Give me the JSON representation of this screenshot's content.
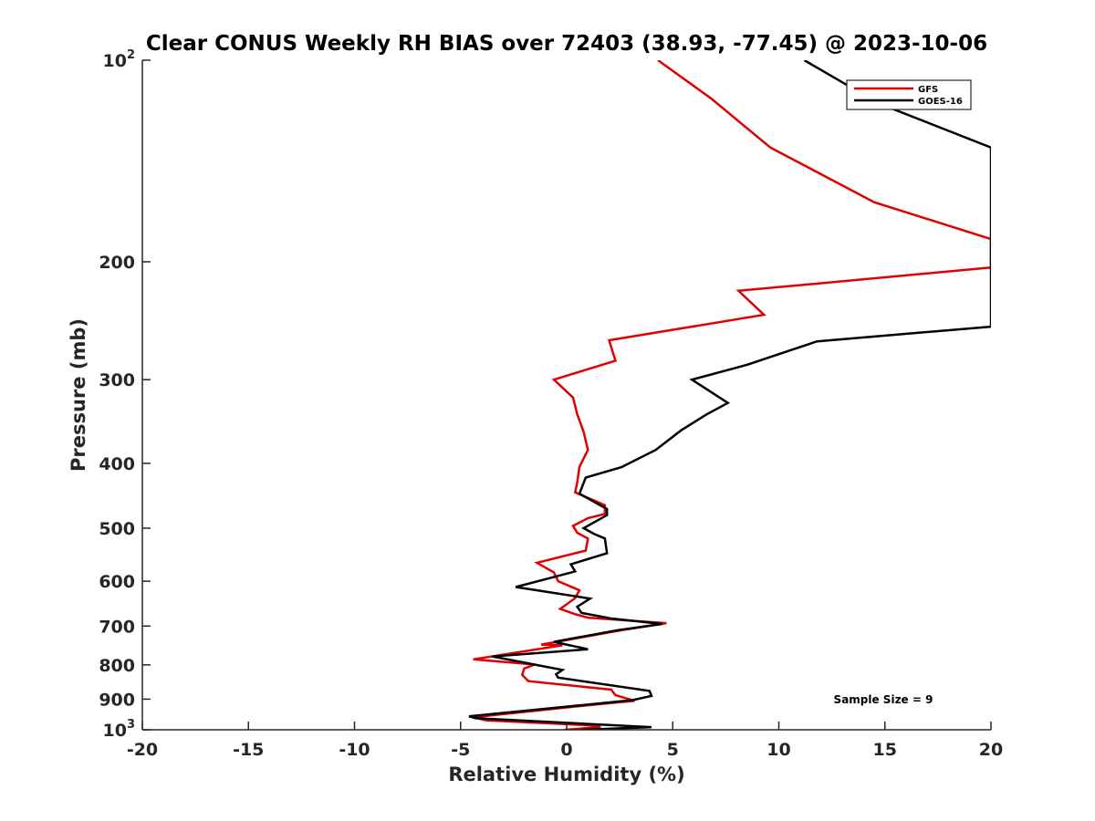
{
  "chart_data": {
    "type": "line",
    "title": "Clear CONUS Weekly RH BIAS over 72403 (38.93, -77.45) @ 2023-10-06",
    "xlabel": "Relative Humidity (%)",
    "ylabel": "Pressure (mb)",
    "xlim": [
      -20,
      20
    ],
    "ylim": [
      100,
      1000
    ],
    "y_scale": "log",
    "y_reversed": true,
    "x_ticks": [
      -20,
      -15,
      -10,
      -5,
      0,
      5,
      10,
      15,
      20
    ],
    "x_tick_labels": [
      "-20",
      "-15",
      "-10",
      "-5",
      "0",
      "5",
      "10",
      "15",
      "20"
    ],
    "y_ticks": [
      100,
      200,
      300,
      400,
      500,
      600,
      700,
      800,
      900,
      1000
    ],
    "y_tick_labels": [
      {
        "base": "10",
        "sup": "2"
      },
      {
        "base": "200",
        "sup": ""
      },
      {
        "base": "300",
        "sup": ""
      },
      {
        "base": "400",
        "sup": ""
      },
      {
        "base": "500",
        "sup": ""
      },
      {
        "base": "600",
        "sup": ""
      },
      {
        "base": "700",
        "sup": ""
      },
      {
        "base": "800",
        "sup": ""
      },
      {
        "base": "900",
        "sup": ""
      },
      {
        "base": "10",
        "sup": "3"
      }
    ],
    "grid": false,
    "legend_position": "top-right",
    "annotation": "Sample Size = 9",
    "series": [
      {
        "name": "GFS",
        "color": "#e00000",
        "points": [
          [
            4.3,
            100
          ],
          [
            6.8,
            114
          ],
          [
            9.6,
            135
          ],
          [
            14.5,
            163
          ],
          [
            20,
            185
          ],
          [
            20,
            204
          ],
          [
            8.1,
            221
          ],
          [
            9.3,
            240
          ],
          [
            2.0,
            262
          ],
          [
            2.3,
            281
          ],
          [
            -0.6,
            300
          ],
          [
            0.3,
            319
          ],
          [
            0.5,
            338
          ],
          [
            0.8,
            359
          ],
          [
            1.0,
            382
          ],
          [
            0.6,
            405
          ],
          [
            0.5,
            427
          ],
          [
            0.4,
            442
          ],
          [
            1.8,
            462
          ],
          [
            1.8,
            476
          ],
          [
            1.0,
            483
          ],
          [
            0.3,
            496
          ],
          [
            0.5,
            508
          ],
          [
            1.0,
            518
          ],
          [
            0.9,
            540
          ],
          [
            -1.4,
            563
          ],
          [
            -0.6,
            582
          ],
          [
            -0.4,
            600
          ],
          [
            0.6,
            619
          ],
          [
            0.4,
            636
          ],
          [
            -0.3,
            660
          ],
          [
            0.4,
            672
          ],
          [
            1.0,
            680
          ],
          [
            4.7,
            693
          ],
          [
            2.6,
            710
          ],
          [
            -1.2,
            746
          ],
          [
            -0.2,
            748
          ],
          [
            -4.4,
            785
          ],
          [
            -1.5,
            799
          ],
          [
            -2.0,
            810
          ],
          [
            -2.1,
            828
          ],
          [
            -1.8,
            846
          ],
          [
            2.1,
            871
          ],
          [
            2.3,
            888
          ],
          [
            3.2,
            905
          ],
          [
            1.6,
            915
          ],
          [
            -4.4,
            958
          ],
          [
            -3.8,
            968
          ],
          [
            1.2,
            985
          ],
          [
            1.6,
            991
          ],
          [
            -0.1,
            1000
          ]
        ]
      },
      {
        "name": "GOES-16",
        "color": "#000000",
        "points": [
          [
            11.2,
            100
          ],
          [
            14.7,
            116
          ],
          [
            20,
            135
          ],
          [
            20,
            250
          ],
          [
            11.8,
            263
          ],
          [
            8.5,
            285
          ],
          [
            5.9,
            300
          ],
          [
            7.6,
            325
          ],
          [
            6.6,
            338
          ],
          [
            5.4,
            357
          ],
          [
            4.2,
            382
          ],
          [
            2.6,
            405
          ],
          [
            0.9,
            420
          ],
          [
            0.6,
            444
          ],
          [
            1.9,
            468
          ],
          [
            1.9,
            478
          ],
          [
            0.8,
            500
          ],
          [
            1.3,
            510
          ],
          [
            1.8,
            518
          ],
          [
            1.9,
            545
          ],
          [
            0.2,
            566
          ],
          [
            0.4,
            580
          ],
          [
            -2.4,
            612
          ],
          [
            1.1,
            637
          ],
          [
            0.5,
            655
          ],
          [
            0.7,
            669
          ],
          [
            2.1,
            682
          ],
          [
            4.5,
            695
          ],
          [
            2.4,
            710
          ],
          [
            -0.6,
            739
          ],
          [
            1.0,
            758
          ],
          [
            -3.5,
            777
          ],
          [
            -0.2,
            814
          ],
          [
            -0.5,
            826
          ],
          [
            -0.4,
            836
          ],
          [
            3.9,
            875
          ],
          [
            4.0,
            890
          ],
          [
            3.1,
            903
          ],
          [
            -4.6,
            955
          ],
          [
            -4.3,
            961
          ],
          [
            4.0,
            991
          ],
          [
            0.7,
            1000
          ]
        ]
      }
    ]
  }
}
